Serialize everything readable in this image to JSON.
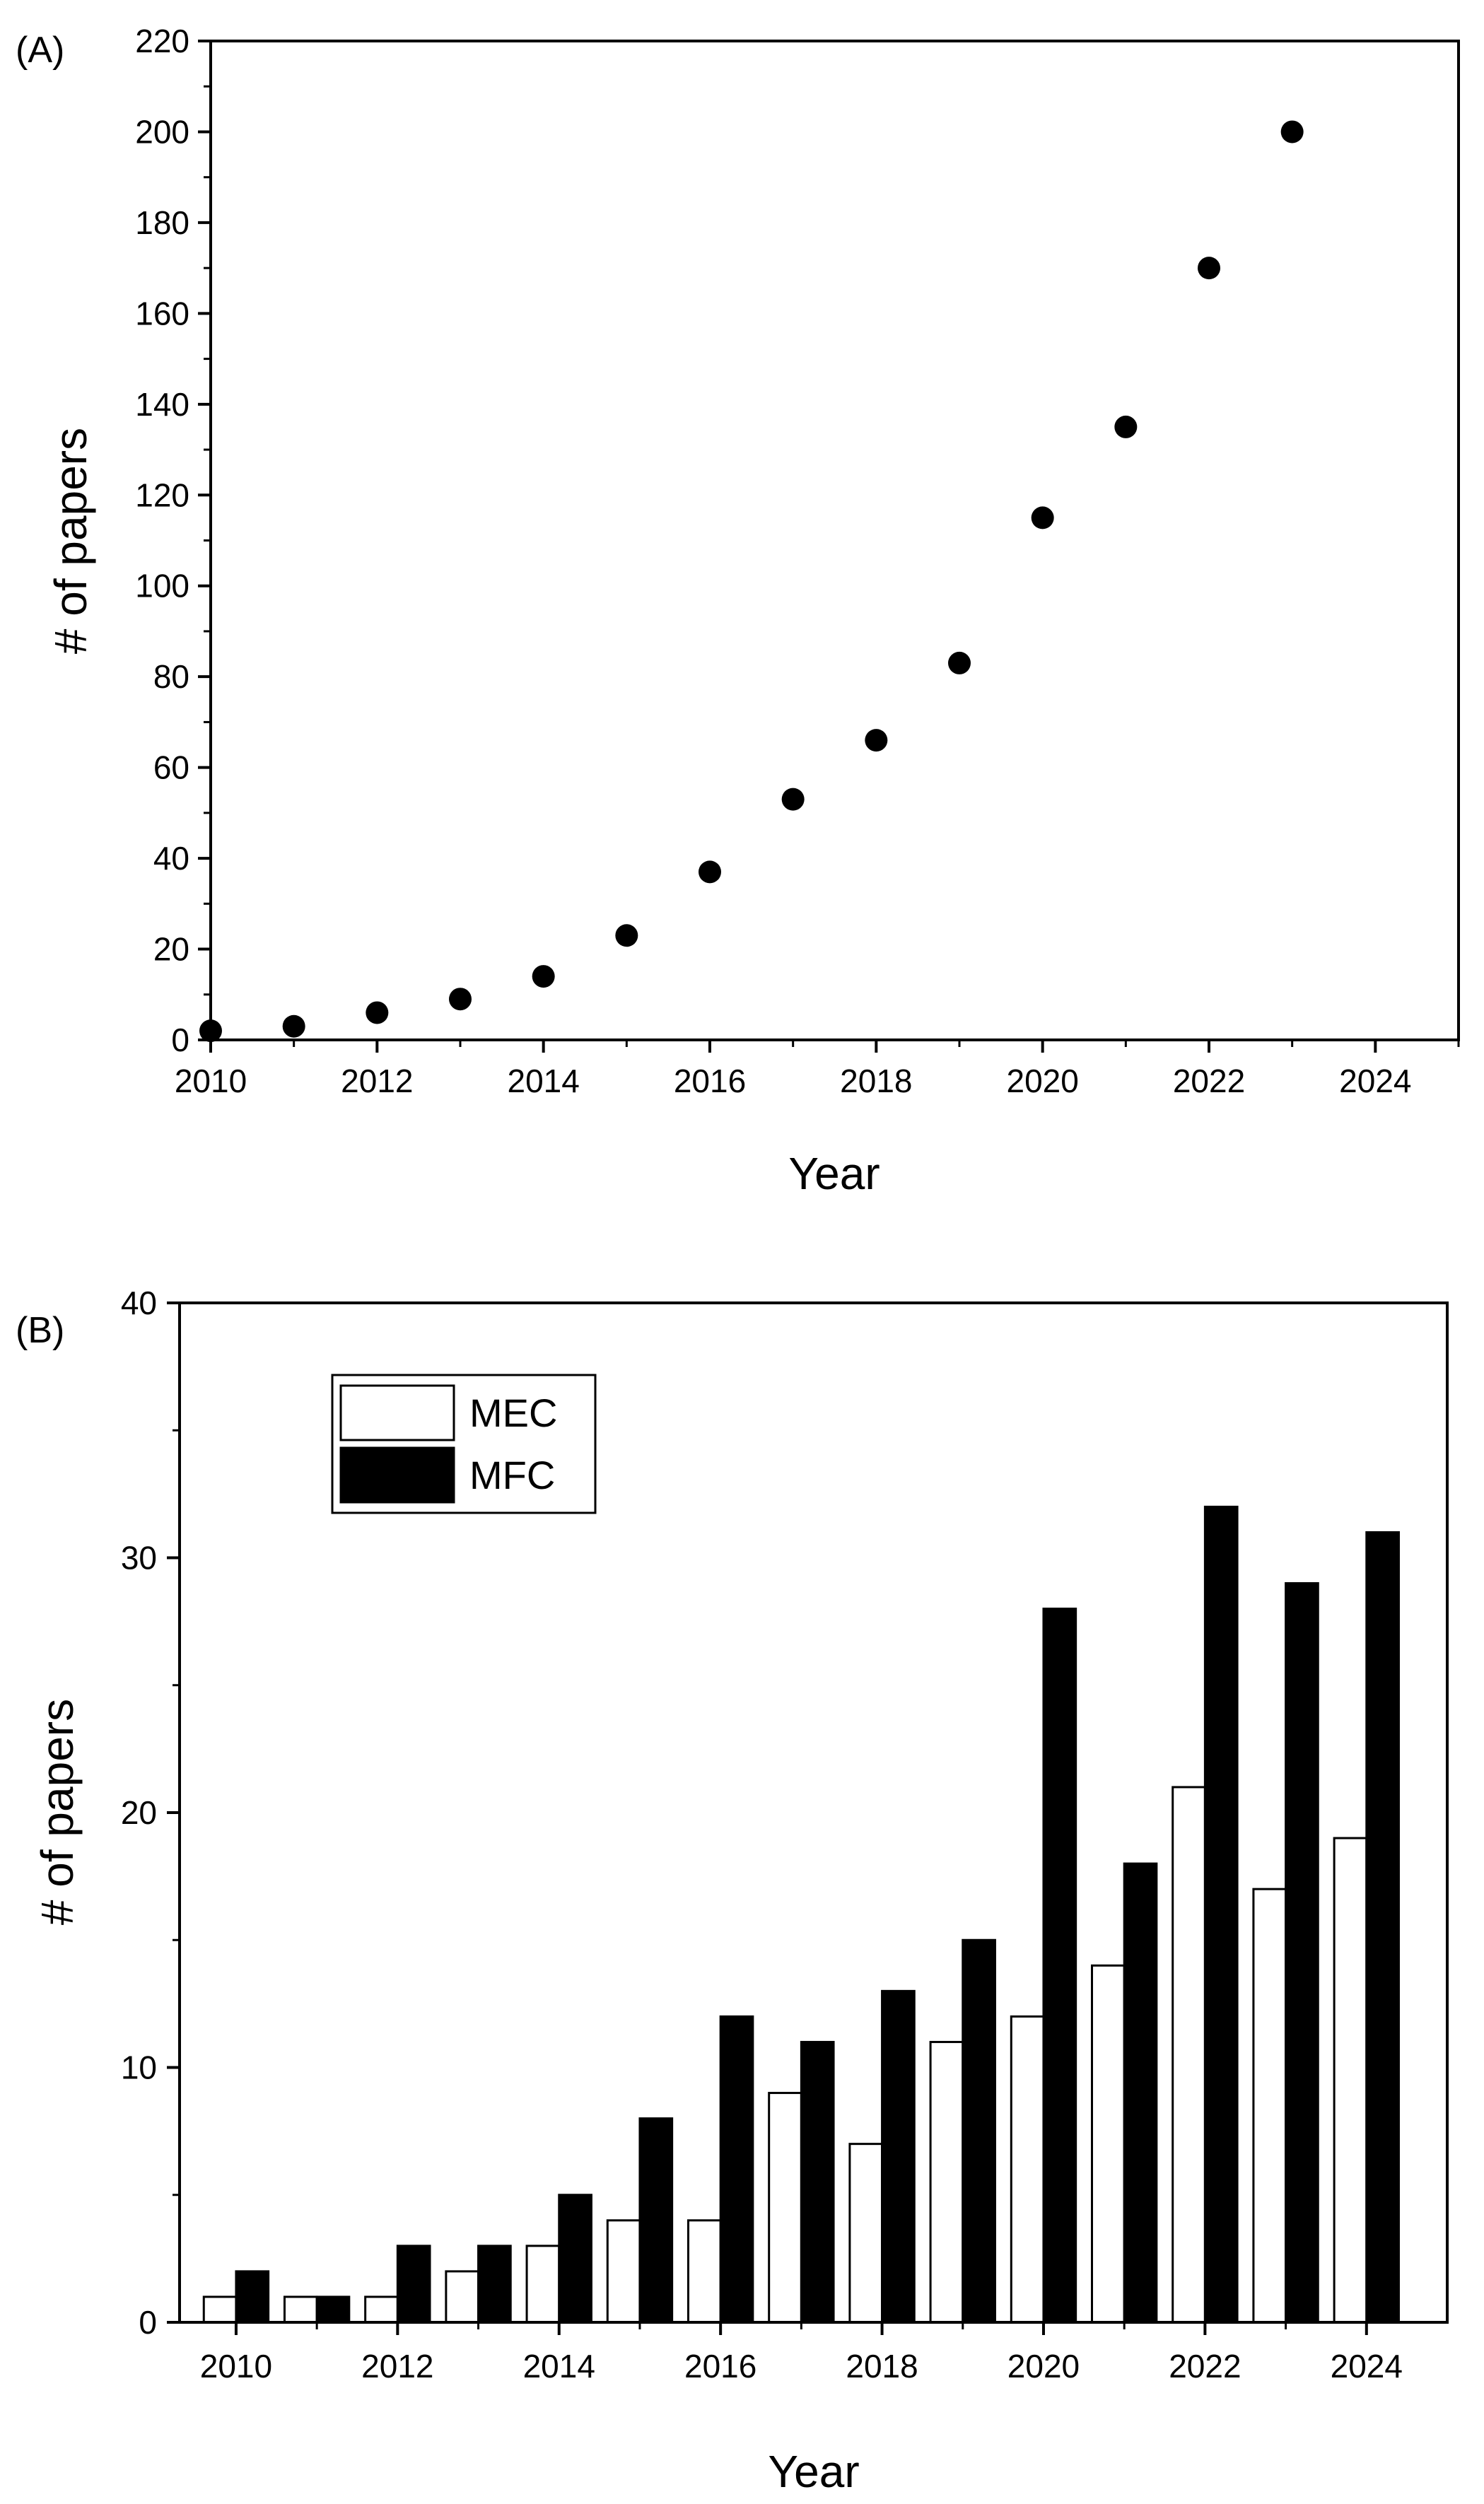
{
  "chart_data": [
    {
      "panel_label": "(A)",
      "type": "scatter",
      "xlabel": "Year",
      "ylabel": "# of papers",
      "xlim": [
        2010,
        2025
      ],
      "ylim": [
        0,
        220
      ],
      "x_ticks": [
        "2010",
        "2012",
        "2014",
        "2016",
        "2018",
        "2020",
        "2022",
        "2024"
      ],
      "y_ticks": [
        "0",
        "20",
        "40",
        "60",
        "80",
        "100",
        "120",
        "140",
        "160",
        "180",
        "200",
        "220"
      ],
      "grid": false,
      "series": [
        {
          "name": "papers",
          "x": [
            2010,
            2011,
            2012,
            2013,
            2014,
            2015,
            2016,
            2017,
            2018,
            2019,
            2020,
            2021,
            2022,
            2023
          ],
          "y": [
            2,
            3,
            6,
            9,
            14,
            23,
            37,
            53,
            66,
            83,
            115,
            135,
            170,
            200
          ]
        }
      ],
      "colors": {
        "marker": "#000000"
      }
    },
    {
      "panel_label": "(B)",
      "type": "bar",
      "xlabel": "Year",
      "ylabel": "# of papers",
      "categories": [
        2010,
        2011,
        2012,
        2013,
        2014,
        2015,
        2016,
        2017,
        2018,
        2019,
        2020,
        2021,
        2022,
        2023,
        2024
      ],
      "x_ticks": [
        "2010",
        "2012",
        "2014",
        "2016",
        "2018",
        "2020",
        "2022",
        "2024"
      ],
      "y_ticks": [
        "0",
        "10",
        "20",
        "30",
        "40"
      ],
      "xlim": [
        2009.3,
        2025.0
      ],
      "ylim": [
        0,
        40
      ],
      "grid": false,
      "legend_position": "top-left",
      "series": [
        {
          "name": "MEC",
          "values": [
            1,
            1,
            1,
            2,
            3,
            4,
            4,
            9,
            7,
            11,
            12,
            14,
            21,
            17,
            19
          ],
          "color": "#ffffff"
        },
        {
          "name": "MFC",
          "values": [
            2,
            1,
            3,
            3,
            5,
            8,
            12,
            11,
            13,
            15,
            28,
            18,
            32,
            29,
            31
          ],
          "color": "#000000"
        }
      ]
    }
  ]
}
